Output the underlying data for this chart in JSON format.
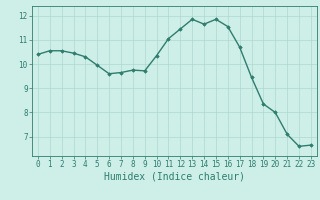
{
  "x": [
    0,
    1,
    2,
    3,
    4,
    5,
    6,
    7,
    8,
    9,
    10,
    11,
    12,
    13,
    14,
    15,
    16,
    17,
    18,
    19,
    20,
    21,
    22,
    23
  ],
  "y": [
    10.4,
    10.55,
    10.55,
    10.45,
    10.3,
    9.95,
    9.6,
    9.65,
    9.75,
    9.72,
    10.35,
    11.05,
    11.45,
    11.85,
    11.65,
    11.85,
    11.55,
    10.7,
    9.45,
    8.35,
    8.0,
    7.1,
    6.6,
    6.65
  ],
  "line_color": "#2e7d6e",
  "marker": "D",
  "marker_size": 1.8,
  "linewidth": 1.0,
  "background_color": "#ceeee8",
  "grid_color": "#aed8d0",
  "xlabel": "Humidex (Indice chaleur)",
  "xlim": [
    -0.5,
    23.5
  ],
  "ylim": [
    6.2,
    12.4
  ],
  "yticks": [
    7,
    8,
    9,
    10,
    11,
    12
  ],
  "xticks": [
    0,
    1,
    2,
    3,
    4,
    5,
    6,
    7,
    8,
    9,
    10,
    11,
    12,
    13,
    14,
    15,
    16,
    17,
    18,
    19,
    20,
    21,
    22,
    23
  ],
  "tick_fontsize": 5.5,
  "xlabel_fontsize": 7.0
}
